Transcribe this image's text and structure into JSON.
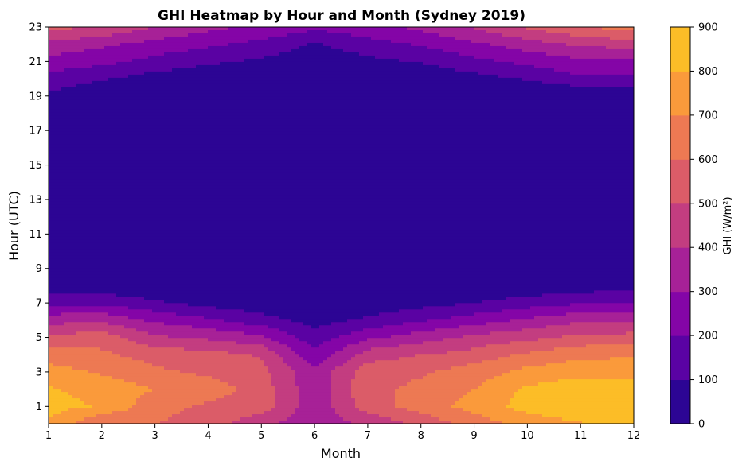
{
  "chart_data": {
    "type": "heatmap",
    "style": "filled-contour",
    "colormap": "plasma",
    "title": "GHI Heatmap by Hour and Month (Sydney 2019)",
    "xlabel": "Month",
    "ylabel": "Hour (UTC)",
    "colorbar_label": "GHI (W/m²)",
    "x": [
      1,
      2,
      3,
      4,
      5,
      6,
      7,
      8,
      9,
      10,
      11,
      12
    ],
    "y": [
      0,
      1,
      2,
      3,
      4,
      5,
      6,
      7,
      8,
      9,
      10,
      11,
      12,
      13,
      14,
      15,
      16,
      17,
      18,
      19,
      20,
      21,
      22,
      23
    ],
    "xlim": [
      1,
      12
    ],
    "ylim": [
      0,
      23
    ],
    "xticks": [
      "1",
      "2",
      "3",
      "4",
      "5",
      "6",
      "7",
      "8",
      "9",
      "10",
      "11",
      "12"
    ],
    "yticks": [
      "1",
      "3",
      "5",
      "7",
      "9",
      "11",
      "13",
      "15",
      "17",
      "19",
      "21",
      "23"
    ],
    "levels": [
      0,
      100,
      200,
      300,
      400,
      500,
      600,
      700,
      800,
      900
    ],
    "level_labels": [
      "0",
      "100",
      "200",
      "300",
      "400",
      "500",
      "600",
      "700",
      "800",
      "900"
    ],
    "level_colors": [
      "#2c0594",
      "#5a02a3",
      "#8405a7",
      "#a72197",
      "#c33d80",
      "#db5c68",
      "#ed7953",
      "#fa9a3b",
      "#fcbd27",
      "#f5e726"
    ],
    "z": [
      [
        780,
        600,
        600,
        550,
        420,
        330,
        420,
        530,
        640,
        740,
        790,
        860
      ],
      [
        840,
        790,
        640,
        580,
        560,
        330,
        550,
        650,
        740,
        840,
        880,
        860
      ],
      [
        810,
        760,
        700,
        650,
        560,
        330,
        580,
        620,
        700,
        820,
        860,
        840
      ],
      [
        740,
        690,
        620,
        580,
        530,
        320,
        560,
        590,
        650,
        730,
        770,
        760
      ],
      [
        650,
        620,
        560,
        540,
        490,
        230,
        450,
        500,
        540,
        620,
        670,
        690
      ],
      [
        520,
        560,
        420,
        380,
        320,
        140,
        280,
        350,
        430,
        470,
        530,
        540
      ],
      [
        360,
        380,
        280,
        220,
        140,
        60,
        120,
        190,
        250,
        320,
        380,
        380
      ],
      [
        180,
        180,
        120,
        60,
        30,
        10,
        30,
        60,
        100,
        150,
        190,
        210
      ],
      [
        40,
        30,
        10,
        5,
        0,
        0,
        0,
        5,
        10,
        20,
        40,
        60
      ],
      [
        0,
        0,
        0,
        0,
        0,
        0,
        0,
        0,
        0,
        0,
        0,
        0
      ],
      [
        0,
        0,
        0,
        0,
        0,
        0,
        0,
        0,
        0,
        0,
        0,
        0
      ],
      [
        0,
        0,
        0,
        0,
        0,
        0,
        0,
        0,
        0,
        0,
        0,
        0
      ],
      [
        0,
        0,
        0,
        0,
        0,
        0,
        0,
        0,
        0,
        0,
        0,
        0
      ],
      [
        0,
        0,
        0,
        0,
        0,
        0,
        0,
        0,
        0,
        0,
        0,
        0
      ],
      [
        0,
        0,
        0,
        0,
        0,
        0,
        0,
        0,
        0,
        0,
        0,
        0
      ],
      [
        0,
        0,
        0,
        0,
        0,
        0,
        0,
        0,
        0,
        0,
        0,
        0
      ],
      [
        0,
        0,
        0,
        0,
        0,
        0,
        0,
        0,
        0,
        0,
        0,
        0
      ],
      [
        0,
        0,
        0,
        0,
        0,
        0,
        0,
        0,
        0,
        0,
        0,
        0
      ],
      [
        0,
        0,
        0,
        0,
        0,
        0,
        0,
        0,
        0,
        0,
        0,
        0
      ],
      [
        80,
        30,
        0,
        0,
        0,
        0,
        0,
        0,
        0,
        0,
        0,
        0
      ],
      [
        160,
        110,
        50,
        20,
        0,
        0,
        0,
        20,
        60,
        110,
        180,
        170
      ],
      [
        260,
        230,
        170,
        120,
        80,
        40,
        70,
        110,
        170,
        230,
        270,
        290
      ],
      [
        370,
        320,
        260,
        220,
        170,
        90,
        160,
        210,
        280,
        350,
        420,
        440
      ],
      [
        530,
        500,
        400,
        330,
        280,
        230,
        260,
        330,
        410,
        520,
        600,
        640
      ]
    ]
  }
}
